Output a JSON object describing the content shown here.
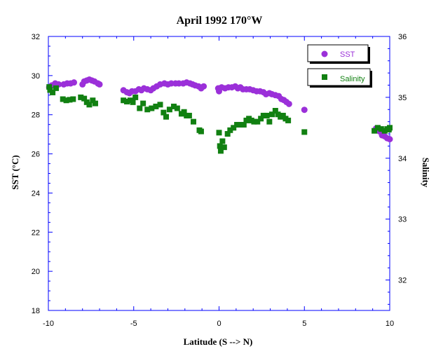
{
  "chart_data": {
    "type": "scatter",
    "title": "April 1992 170°W",
    "xlabel": "Latitude (S --> N)",
    "ylabel_left": "SST (°C)",
    "ylabel_right": "Salinity",
    "xlim": [
      -10,
      10
    ],
    "ylim_left": [
      18,
      32
    ],
    "ylim_right": [
      31.5,
      36
    ],
    "x_ticks": [
      "-10",
      "-5",
      "0",
      "5",
      "10"
    ],
    "y_left_ticks": [
      "18",
      "20",
      "22",
      "24",
      "26",
      "28",
      "30",
      "32"
    ],
    "y_right_ticks": [
      "32",
      "33",
      "34",
      "35",
      "36"
    ],
    "legend_position": "top-right",
    "series": [
      {
        "name": "SST",
        "axis": "left",
        "marker": "circle",
        "color": "#9b30d9",
        "points": [
          [
            -9.95,
            29.4
          ],
          [
            -9.8,
            29.5
          ],
          [
            -9.6,
            29.6
          ],
          [
            -9.4,
            29.55
          ],
          [
            -9.1,
            29.55
          ],
          [
            -8.9,
            29.6
          ],
          [
            -8.7,
            29.6
          ],
          [
            -8.5,
            29.65
          ],
          [
            -8.0,
            29.55
          ],
          [
            -7.9,
            29.7
          ],
          [
            -7.75,
            29.75
          ],
          [
            -7.6,
            29.8
          ],
          [
            -7.45,
            29.75
          ],
          [
            -7.3,
            29.7
          ],
          [
            -7.1,
            29.6
          ],
          [
            -7.0,
            29.55
          ],
          [
            -5.6,
            29.25
          ],
          [
            -5.4,
            29.15
          ],
          [
            -5.25,
            29.1
          ],
          [
            -5.1,
            29.2
          ],
          [
            -4.9,
            29.2
          ],
          [
            -4.7,
            29.3
          ],
          [
            -4.55,
            29.25
          ],
          [
            -4.4,
            29.35
          ],
          [
            -4.2,
            29.3
          ],
          [
            -4.0,
            29.25
          ],
          [
            -3.85,
            29.35
          ],
          [
            -3.65,
            29.45
          ],
          [
            -3.45,
            29.55
          ],
          [
            -3.2,
            29.6
          ],
          [
            -3.0,
            29.55
          ],
          [
            -2.8,
            29.6
          ],
          [
            -2.55,
            29.6
          ],
          [
            -2.35,
            29.6
          ],
          [
            -2.1,
            29.6
          ],
          [
            -1.9,
            29.65
          ],
          [
            -1.7,
            29.6
          ],
          [
            -1.55,
            29.55
          ],
          [
            -1.4,
            29.5
          ],
          [
            -1.2,
            29.45
          ],
          [
            -1.05,
            29.35
          ],
          [
            -0.9,
            29.45
          ],
          [
            -0.05,
            29.35
          ],
          [
            0.0,
            29.2
          ],
          [
            0.15,
            29.4
          ],
          [
            0.35,
            29.35
          ],
          [
            0.55,
            29.4
          ],
          [
            0.75,
            29.4
          ],
          [
            0.95,
            29.45
          ],
          [
            1.1,
            29.35
          ],
          [
            1.25,
            29.4
          ],
          [
            1.4,
            29.3
          ],
          [
            1.6,
            29.3
          ],
          [
            1.8,
            29.3
          ],
          [
            2.0,
            29.25
          ],
          [
            2.2,
            29.2
          ],
          [
            2.4,
            29.2
          ],
          [
            2.6,
            29.15
          ],
          [
            2.75,
            29.05
          ],
          [
            2.95,
            29.1
          ],
          [
            3.1,
            29.05
          ],
          [
            3.3,
            29.0
          ],
          [
            3.5,
            28.95
          ],
          [
            3.65,
            28.8
          ],
          [
            3.8,
            28.75
          ],
          [
            3.95,
            28.65
          ],
          [
            4.1,
            28.55
          ],
          [
            5.0,
            28.25
          ],
          [
            9.2,
            27.3
          ],
          [
            9.4,
            27.15
          ],
          [
            9.55,
            26.95
          ],
          [
            9.7,
            26.9
          ],
          [
            9.85,
            26.8
          ],
          [
            10.0,
            26.75
          ]
        ]
      },
      {
        "name": "Salinity",
        "axis": "right",
        "marker": "square",
        "color": "#118011",
        "points": [
          [
            -9.95,
            35.17
          ],
          [
            -9.9,
            35.12
          ],
          [
            -9.75,
            35.08
          ],
          [
            -9.55,
            35.15
          ],
          [
            -9.15,
            34.97
          ],
          [
            -8.95,
            34.95
          ],
          [
            -8.75,
            34.96
          ],
          [
            -8.55,
            34.97
          ],
          [
            -8.1,
            35.0
          ],
          [
            -7.9,
            34.98
          ],
          [
            -7.75,
            34.92
          ],
          [
            -7.6,
            34.88
          ],
          [
            -7.4,
            34.95
          ],
          [
            -7.25,
            34.9
          ],
          [
            -5.6,
            34.95
          ],
          [
            -5.4,
            34.93
          ],
          [
            -5.2,
            34.95
          ],
          [
            -5.05,
            34.92
          ],
          [
            -4.9,
            35.0
          ],
          [
            -4.65,
            34.82
          ],
          [
            -4.45,
            34.9
          ],
          [
            -4.2,
            34.8
          ],
          [
            -3.95,
            34.82
          ],
          [
            -3.7,
            34.85
          ],
          [
            -3.45,
            34.88
          ],
          [
            -3.25,
            34.75
          ],
          [
            -3.1,
            34.68
          ],
          [
            -2.9,
            34.8
          ],
          [
            -2.65,
            34.85
          ],
          [
            -2.45,
            34.82
          ],
          [
            -2.2,
            34.73
          ],
          [
            -2.05,
            34.76
          ],
          [
            -1.9,
            34.7
          ],
          [
            -1.75,
            34.7
          ],
          [
            -1.5,
            34.6
          ],
          [
            -1.15,
            34.46
          ],
          [
            -1.05,
            34.44
          ],
          [
            0.0,
            34.42
          ],
          [
            0.05,
            34.2
          ],
          [
            0.1,
            34.12
          ],
          [
            0.2,
            34.28
          ],
          [
            0.3,
            34.18
          ],
          [
            0.5,
            34.4
          ],
          [
            0.65,
            34.46
          ],
          [
            0.85,
            34.5
          ],
          [
            1.05,
            34.55
          ],
          [
            1.25,
            34.55
          ],
          [
            1.45,
            34.55
          ],
          [
            1.6,
            34.62
          ],
          [
            1.75,
            34.65
          ],
          [
            1.9,
            34.62
          ],
          [
            2.05,
            34.6
          ],
          [
            2.25,
            34.6
          ],
          [
            2.45,
            34.65
          ],
          [
            2.6,
            34.7
          ],
          [
            2.8,
            34.7
          ],
          [
            2.95,
            34.6
          ],
          [
            3.1,
            34.72
          ],
          [
            3.3,
            34.78
          ],
          [
            3.45,
            34.72
          ],
          [
            3.6,
            34.68
          ],
          [
            3.75,
            34.7
          ],
          [
            3.9,
            34.65
          ],
          [
            4.05,
            34.62
          ],
          [
            5.0,
            34.43
          ],
          [
            9.1,
            34.45
          ],
          [
            9.3,
            34.5
          ],
          [
            9.5,
            34.48
          ],
          [
            9.7,
            34.45
          ],
          [
            9.85,
            34.48
          ],
          [
            9.95,
            34.47
          ],
          [
            10.0,
            34.5
          ]
        ]
      }
    ]
  }
}
